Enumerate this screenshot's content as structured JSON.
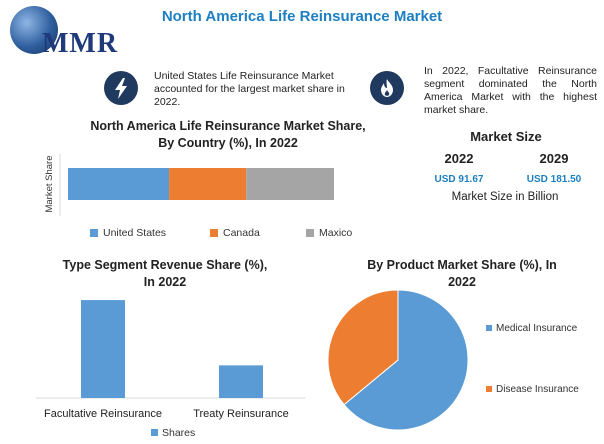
{
  "header": {
    "logo_text": "MMR",
    "title": "North America Life Reinsurance Market"
  },
  "info": {
    "left_text": "United States Life Reinsurance Market accounted for the largest market share in 2022.",
    "right_text": "In 2022, Facultative Reinsurance segment dominated the North America Market with the highest market share.",
    "left_icon": "lightning-icon",
    "right_icon": "flame-icon"
  },
  "market_size": {
    "title": "Market Size",
    "year_a": "2022",
    "year_b": "2029",
    "value_a": "USD 91.67",
    "value_b": "USD 181.50",
    "note": "Market Size in Billion"
  },
  "chart_data": [
    {
      "type": "bar",
      "orientation": "horizontal-stacked",
      "title": "North America Life Reinsurance Market Share, By Country (%), In 2022",
      "title_lines": [
        "North America Life Reinsurance Market Share,",
        "By Country (%), In 2022"
      ],
      "ylabel": "Market Share",
      "series": [
        {
          "name": "United States",
          "value": 38,
          "color": "#5b9bd5"
        },
        {
          "name": "Canada",
          "value": 29,
          "color": "#ed7d31"
        },
        {
          "name": "Maxico",
          "value": 33,
          "color": "#a5a5a5"
        }
      ],
      "legend": "bottom"
    },
    {
      "type": "bar",
      "title": "Type Segment Revenue Share (%), In 2022",
      "title_lines": [
        "Type Segment Revenue Share (%),",
        "In 2022"
      ],
      "categories": [
        "Facultative Reinsurance",
        "Treaty Reinsurance"
      ],
      "series": [
        {
          "name": "Shares",
          "values": [
            72,
            24
          ],
          "color": "#5b9bd5"
        }
      ],
      "ylim": [
        0,
        75
      ],
      "legend": "bottom"
    },
    {
      "type": "pie",
      "title": "By Product Market Share (%), In 2022",
      "title_lines": [
        "By Product Market Share (%), In",
        "2022"
      ],
      "slices": [
        {
          "name": "Medical Insurance",
          "value": 64,
          "color": "#5b9bd5"
        },
        {
          "name": "Disease Insurance",
          "value": 36,
          "color": "#ed7d31"
        }
      ],
      "legend": "right"
    }
  ]
}
